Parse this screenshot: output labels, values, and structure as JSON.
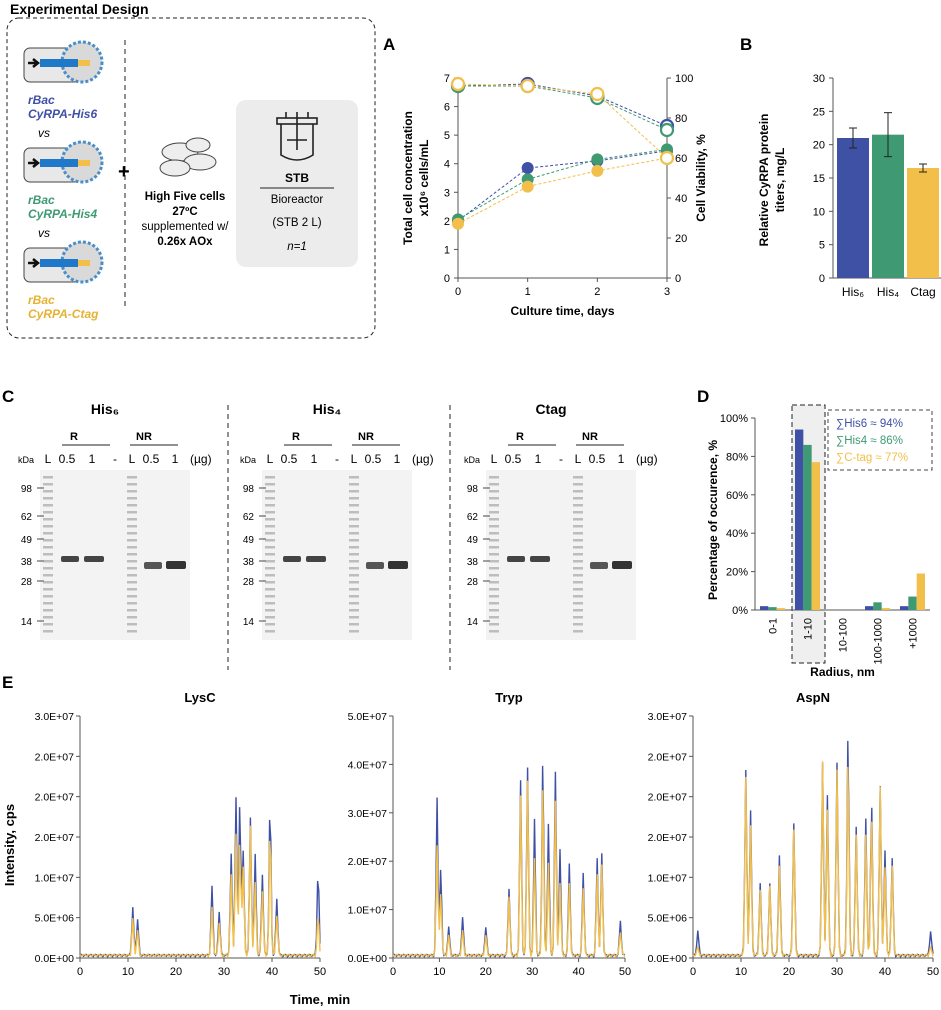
{
  "colors": {
    "blue": "#3f51a5",
    "green": "#3f9a73",
    "yellow": "#f2bf4a",
    "gray_box": "#efefef",
    "gel": "#f3f3f3",
    "dark": "#222222"
  },
  "design": {
    "title": "Experimental Design",
    "constructs": [
      {
        "line1": "rBac",
        "line2": "CyRPA-His6",
        "color": "#3f51a5"
      },
      {
        "line1": "rBac",
        "line2": "CyRPA-His4",
        "color": "#3f9a73"
      },
      {
        "line1": "rBac",
        "line2": "CyRPA-Ctag",
        "color": "#e6b233"
      }
    ],
    "vs": "vs",
    "plus": "+",
    "cells_label": "High Five cells",
    "temp": "27ºC",
    "supp": "supplemented w/",
    "aox": "0.26x AOx",
    "stb": "STB",
    "bioreactor": "Bioreactor",
    "stb_volume": "(STB  2 L)",
    "n": "n=1"
  },
  "panels": {
    "A": "A",
    "B": "B",
    "C": "C",
    "D": "D",
    "E": "E"
  },
  "chart_data": [
    {
      "id": "A",
      "type": "scatter",
      "xlabel": "Culture time, days",
      "ylabel": "Total cell concentration x10⁶ cells/mL",
      "y2label": "Cell Viability, %",
      "xlim": [
        0,
        3
      ],
      "ylim": [
        0,
        7
      ],
      "y2lim": [
        0,
        100
      ],
      "xticks": [
        "0",
        "1",
        "2",
        "3"
      ],
      "yticks": [
        "0",
        "1",
        "2",
        "3",
        "4",
        "5",
        "6",
        "7"
      ],
      "y2ticks": [
        "0",
        "20",
        "40",
        "60",
        "80",
        "100"
      ],
      "x": [
        0,
        1,
        2,
        3
      ],
      "series": [
        {
          "name": "His6 concentration",
          "axis": "left",
          "filled": true,
          "values": [
            2.0,
            3.85,
            4.1,
            4.45
          ]
        },
        {
          "name": "His4 concentration",
          "axis": "left",
          "filled": true,
          "values": [
            2.05,
            3.45,
            4.15,
            4.5
          ]
        },
        {
          "name": "Ctag concentration",
          "axis": "left",
          "filled": true,
          "values": [
            1.9,
            3.2,
            3.75,
            4.2
          ]
        },
        {
          "name": "His6 viability",
          "axis": "right",
          "filled": false,
          "values": [
            96,
            97,
            91,
            76
          ]
        },
        {
          "name": "His4 viability",
          "axis": "right",
          "filled": false,
          "values": [
            96,
            96,
            90,
            74
          ]
        },
        {
          "name": "Ctag viability",
          "axis": "right",
          "filled": false,
          "values": [
            97,
            96,
            92,
            60
          ]
        }
      ]
    },
    {
      "id": "B",
      "type": "bar",
      "ylabel": "Relative CyRPA protein titers, mg/L",
      "categories": [
        "His₆",
        "His₄",
        "Ctag"
      ],
      "values": [
        21,
        21.5,
        16.5
      ],
      "errors": [
        1.5,
        3.3,
        0.6
      ],
      "ylim": [
        0,
        30
      ],
      "yticks": [
        "0",
        "5",
        "10",
        "15",
        "20",
        "25",
        "30"
      ]
    },
    {
      "id": "D",
      "type": "bar",
      "ylabel": "Percentage of occurence, %",
      "xlabel": "Radius, nm",
      "categories": [
        "0-1",
        "1-10",
        "10-100",
        "100-1000",
        "+1000"
      ],
      "series": [
        {
          "name": "His6",
          "values": [
            2,
            94,
            0,
            2,
            2
          ]
        },
        {
          "name": "His4",
          "values": [
            1.5,
            86,
            0,
            4,
            7
          ]
        },
        {
          "name": "Ctag",
          "values": [
            1,
            77,
            0,
            1,
            19
          ]
        }
      ],
      "ylim": [
        0,
        100
      ],
      "yticks": [
        "0%",
        "20%",
        "40%",
        "60%",
        "80%",
        "100%"
      ],
      "legend": [
        "∑His6 ≈ 94%",
        "∑His4 ≈ 86%",
        "∑C-tag ≈ 77%"
      ]
    },
    {
      "id": "E",
      "type": "line",
      "ylabel": "Intensity, cps",
      "xlabel": "Time, min",
      "xticks": [
        "0",
        "10",
        "20",
        "30",
        "40",
        "50"
      ],
      "subplots": [
        {
          "title": "LysC",
          "yticks": [
            "0.0E+00",
            "5.0E+06",
            "1.0E+07",
            "2.0E+07",
            "2.0E+07",
            "2.0E+07",
            "3.0E+07"
          ],
          "ylim": [
            0,
            30000000.0
          ],
          "peaks": [
            [
              11,
              6000000.0,
              4500000.0
            ],
            [
              12,
              4500000.0,
              3000000.0
            ],
            [
              27.5,
              8500000.0,
              6000000.0
            ],
            [
              29,
              5500000.0,
              4000000.0
            ],
            [
              31.5,
              12500000.0,
              10000000.0
            ],
            [
              32.5,
              19500000.0,
              15000000.0
            ],
            [
              33.3,
              19000000.0,
              14000000.0
            ],
            [
              34,
              13000000.0,
              11000000.0
            ],
            [
              35.5,
              17000000.0,
              16000000.0
            ],
            [
              36.5,
              12500000.0,
              9000000.0
            ],
            [
              38,
              10000000.0,
              8000000.0
            ],
            [
              39.6,
              19000000.0,
              16000000.0
            ],
            [
              41,
              7000000.0,
              5000000.0
            ],
            [
              49.6,
              10500000.0,
              5000000.0
            ]
          ]
        },
        {
          "title": "Tryp",
          "yticks": [
            "0.0E+00",
            "1.0E+07",
            "2.0E+07",
            "3.0E+07",
            "4.0E+07",
            "5.0E+07"
          ],
          "ylim": [
            0,
            50000000.0
          ],
          "peaks": [
            [
              9.5,
              32500000.0,
              23000000.0
            ],
            [
              10.3,
              18000000.0,
              13000000.0
            ],
            [
              12,
              6000000.0,
              4000000.0
            ],
            [
              15,
              8000000.0,
              5000000.0
            ],
            [
              20,
              6000000.0,
              4000000.0
            ],
            [
              25,
              14000000.0,
              12000000.0
            ],
            [
              27.5,
              36000000.0,
              33000000.0
            ],
            [
              29,
              39000000.0,
              36000000.0
            ],
            [
              30.5,
              28000000.0,
              20000000.0
            ],
            [
              32.3,
              40500000.0,
              35000000.0
            ],
            [
              33.5,
              27000000.0,
              19000000.0
            ],
            [
              35,
              38000000.0,
              32000000.0
            ],
            [
              36,
              22000000.0,
              15000000.0
            ],
            [
              38,
              19000000.0,
              15000000.0
            ],
            [
              41,
              17000000.0,
              14000000.0
            ],
            [
              44,
              20000000.0,
              17000000.0
            ],
            [
              45,
              21000000.0,
              19000000.0
            ],
            [
              49,
              7000000.0,
              5000000.0
            ]
          ]
        },
        {
          "title": "AspN",
          "yticks": [
            "0.0E+00",
            "5.0E+06",
            "1.0E+07",
            "2.0E+07",
            "2.0E+07",
            "2.0E+07",
            "3.0E+07"
          ],
          "ylim": [
            0,
            30000000.0
          ],
          "peaks": [
            [
              1,
              3000000.0,
              1000000.0
            ],
            [
              11,
              23000000.0,
              22000000.0
            ],
            [
              12,
              18000000.0,
              16000000.0
            ],
            [
              14,
              9000000.0,
              8000000.0
            ],
            [
              16,
              9000000.0,
              8500000.0
            ],
            [
              18,
              12500000.0,
              11000000.0
            ],
            [
              21,
              16500000.0,
              15500000.0
            ],
            [
              27,
              24000000.0,
              24000000.0
            ],
            [
              28,
              20000000.0,
              18000000.0
            ],
            [
              30,
              24000000.0,
              23000000.0
            ],
            [
              32.3,
              27500000.0,
              24000000.0
            ],
            [
              34,
              16000000.0,
              15000000.0
            ],
            [
              36,
              17000000.0,
              15000000.0
            ],
            [
              37.2,
              19000000.0,
              17000000.0
            ],
            [
              39,
              21000000.0,
              21000000.0
            ],
            [
              40,
              13000000.0,
              11000000.0
            ],
            [
              41.5,
              12000000.0,
              11000000.0
            ],
            [
              49.5,
              3000000.0,
              1000000.0
            ]
          ]
        }
      ]
    }
  ],
  "gel": {
    "groups": [
      "His₆",
      "His₄",
      "Ctag"
    ],
    "kda": "kDa",
    "lane_labels": [
      "L",
      "0.5",
      "1",
      "-",
      "L",
      "0.5",
      "1"
    ],
    "ug": "(µg)",
    "R": "R",
    "NR": "NR",
    "markers": [
      "98",
      "62",
      "49",
      "38",
      "28",
      "14"
    ]
  }
}
